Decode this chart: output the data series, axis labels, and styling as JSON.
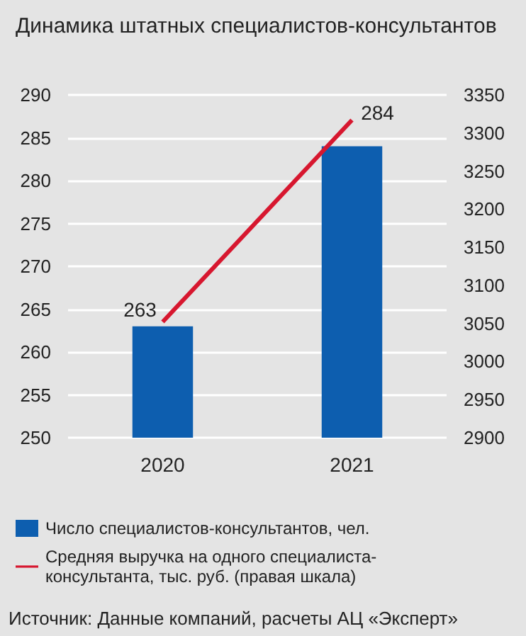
{
  "chart_data": {
    "type": "bar",
    "title": "Динамика штатных специалистов-консультантов",
    "categories": [
      "2020",
      "2021"
    ],
    "series": [
      {
        "name": "Число специалистов-консультантов, чел.",
        "color": "#0d5eaf",
        "values": [
          263,
          284
        ],
        "value_labels": [
          "263",
          "284"
        ]
      },
      {
        "name": "Средняя выручка на одного специалиста-консультанта, тыс. руб. (правая шкала)",
        "type": "line",
        "axis": "y2",
        "color": "#d7172f",
        "values": [
          3052,
          3317
        ]
      }
    ],
    "ylim": [
      250,
      290
    ],
    "yticks": [
      250,
      255,
      260,
      265,
      270,
      275,
      280,
      285,
      290
    ],
    "y2lim": [
      2900,
      3350
    ],
    "y2ticks": [
      2900,
      2950,
      3000,
      3050,
      3100,
      3150,
      3200,
      3250,
      3300,
      3350
    ],
    "grid": "y",
    "legend": "bottom",
    "marker": "none",
    "annotations": [
      "Источник: Данные компаний, расчеты АЦ «Эксперт»"
    ]
  }
}
